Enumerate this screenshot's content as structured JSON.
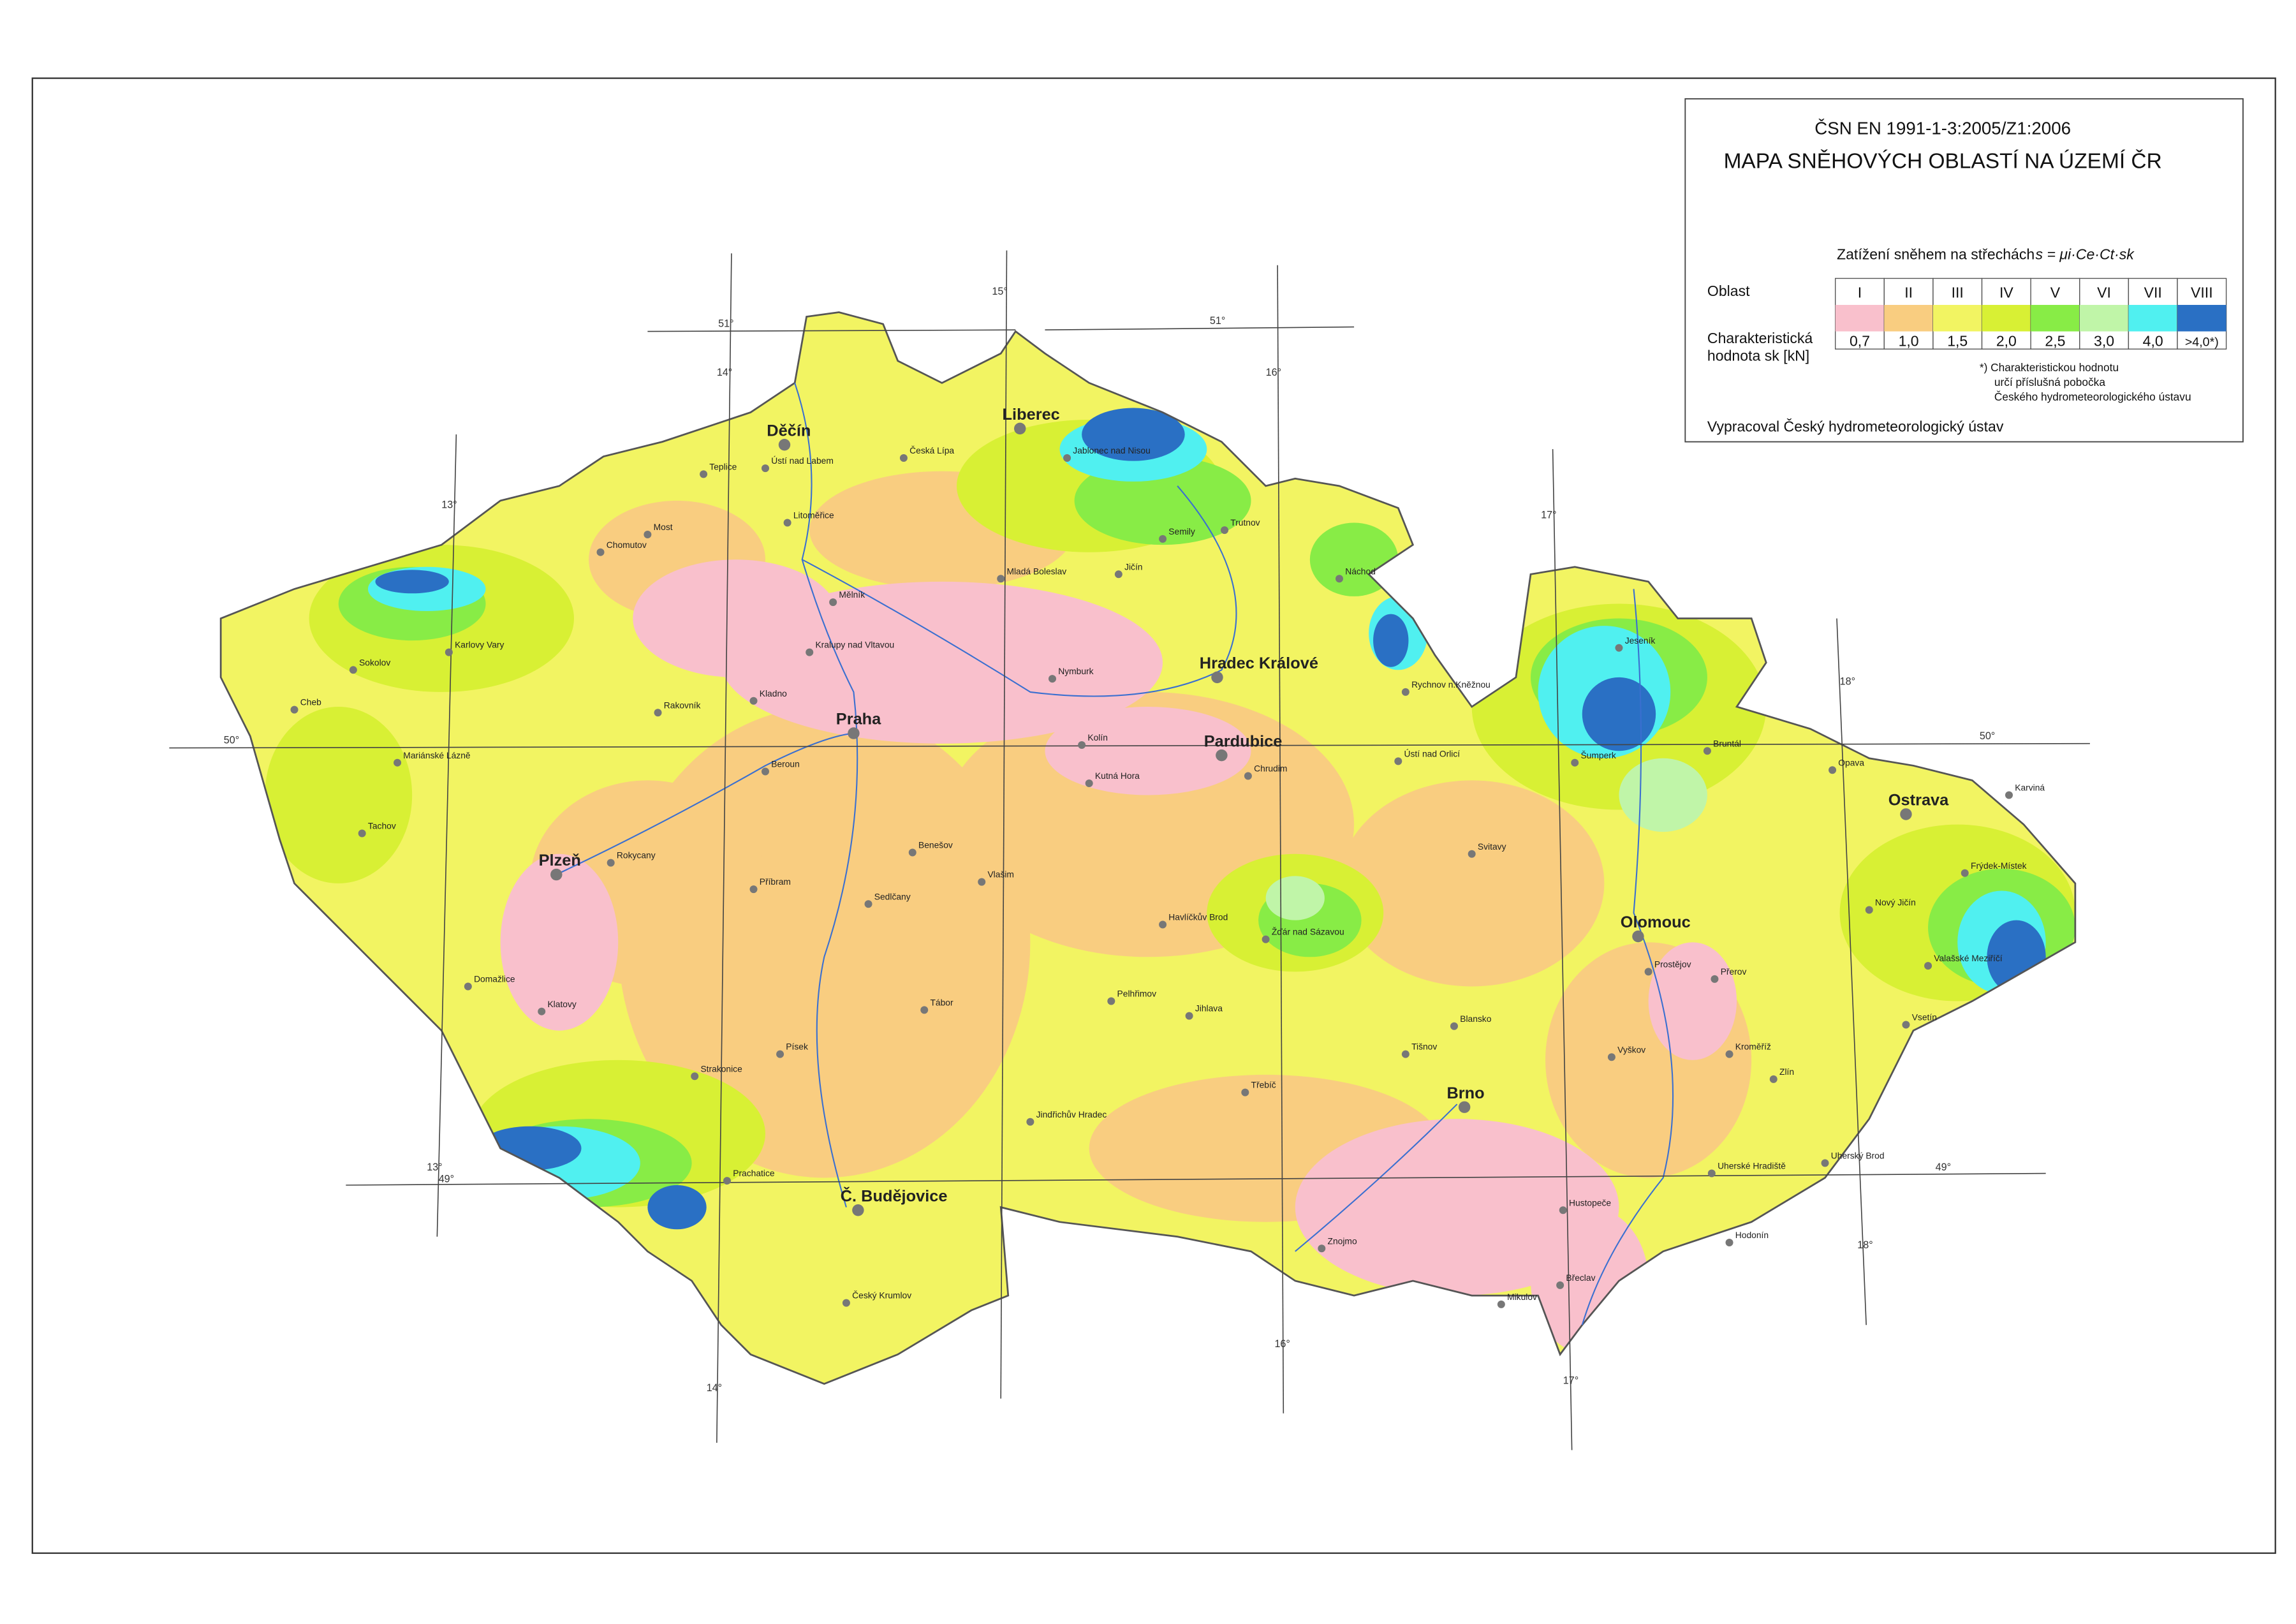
{
  "legend": {
    "standard": "ČSN EN 1991-1-3:2005/Z1:2006",
    "title": "MAPA SNĚHOVÝCH OBLASTÍ NA ÚZEMÍ ČR",
    "formula_text": "Zatížení sněhem na střechách",
    "formula": "s =  μi·Ce·Ct·sk",
    "row_label_zone": "Oblast",
    "row_label_value_1": "Charakteristická",
    "row_label_value_2": "hodnota sk [kN]",
    "zones": [
      {
        "zone": "I",
        "value": "0,7",
        "color": "#f9c0cc"
      },
      {
        "zone": "II",
        "value": "1,0",
        "color": "#f9cd80"
      },
      {
        "zone": "III",
        "value": "1,5",
        "color": "#f2f462"
      },
      {
        "zone": "IV",
        "value": "2,0",
        "color": "#d8f034"
      },
      {
        "zone": "V",
        "value": "2,5",
        "color": "#88ec46"
      },
      {
        "zone": "VI",
        "value": "3,0",
        "color": "#c0f5a8"
      },
      {
        "zone": "VII",
        "value": "4,0",
        "color": "#50f0f0"
      },
      {
        "zone": "VIII",
        "value": ">4,0*)",
        "color": "#2a70c4"
      }
    ],
    "footnote": [
      "*) Charakteristickou hodnotu",
      "určí příslušná pobočka",
      "Českého hydrometeorologického ústavu"
    ],
    "credit": "Vypracoval Český hydrometeorologický ústav"
  },
  "graticule": {
    "latitudes": [
      "51°",
      "51°",
      "50°",
      "50°",
      "49°",
      "49°"
    ],
    "longitudes": [
      "13°",
      "14°",
      "15°",
      "16°",
      "17°",
      "18°",
      "13°",
      "14°",
      "16°",
      "17°",
      "18°"
    ]
  },
  "cities": [
    "Praha",
    "Brno",
    "Ostrava",
    "Plzeň",
    "Liberec",
    "Hradec Králové",
    "Pardubice",
    "Olomouc",
    "Č. Budějovice",
    "Děčín",
    "Ústí nad Labem",
    "Karlovy Vary",
    "Cheb",
    "Jihlava",
    "Zlín",
    "Znojmo",
    "Kolín",
    "Kutná Hora",
    "Mladá Boleslav",
    "Teplice",
    "Most",
    "Chomutov",
    "Litoměřice",
    "Mělník",
    "Kladno",
    "Beroun",
    "Příbram",
    "Tábor",
    "Písek",
    "Strakonice",
    "Klatovy",
    "Domažlice",
    "Sokolov",
    "Mariánské Lázně",
    "Rakovník",
    "Chrudim",
    "Trutnov",
    "Náchod",
    "Jičín",
    "Semily",
    "Havlíčkův Brod",
    "Žďár nad Sázavou",
    "Třebíč",
    "Blansko",
    "Vyškov",
    "Prostějov",
    "Přerov",
    "Kroměříž",
    "Uherské Hradiště",
    "Hodonín",
    "Břeclav",
    "Opava",
    "Karviná",
    "Frýdek-Místek",
    "Nový Jičín",
    "Vsetín",
    "Šumperk",
    "Jeseník",
    "Bruntál",
    "Svitavy",
    "Ústí nad Orlicí",
    "Rychnov n.Kněžnou",
    "Benešov",
    "Jindřichův Hradec",
    "Pelhřimov",
    "Český Krumlov",
    "Prachatice",
    "Rokycany",
    "Tachov",
    "Česká Lípa",
    "Jablonec nad Nisou",
    "Nymburk",
    "Kralupy nad Vltavou",
    "Vlašim",
    "Sedlčany",
    "Tišnov",
    "Mikulov",
    "Hustopeče",
    "Uherský Brod",
    "Valašské Meziříčí"
  ]
}
